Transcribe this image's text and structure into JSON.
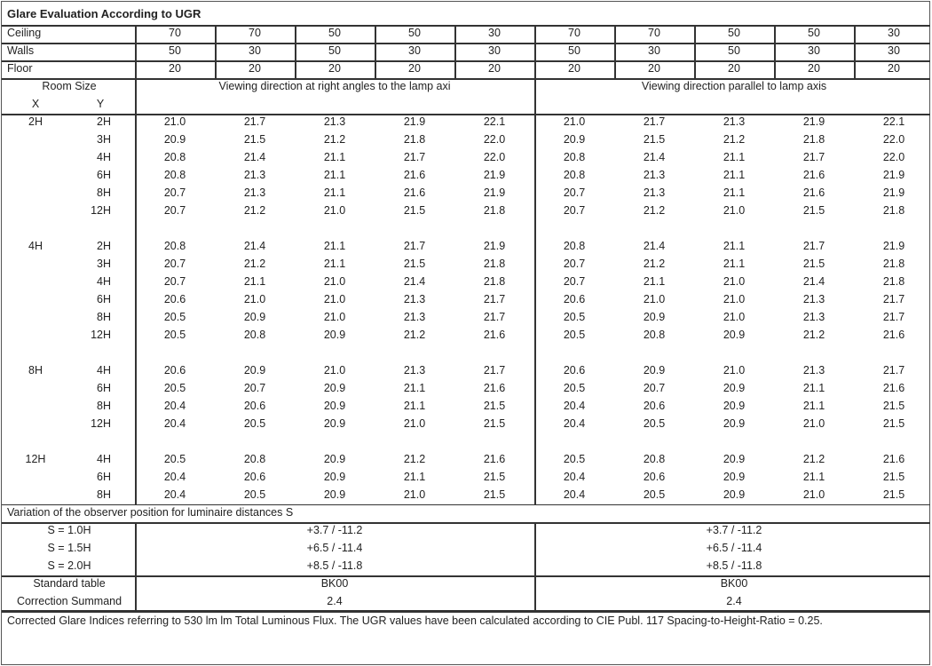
{
  "title": "Glare Evaluation According to UGR",
  "reflectances": [
    {
      "label": "Ceiling",
      "values": [
        "70",
        "70",
        "50",
        "50",
        "30",
        "70",
        "70",
        "50",
        "50",
        "30"
      ]
    },
    {
      "label": "Walls",
      "values": [
        "50",
        "30",
        "50",
        "30",
        "30",
        "50",
        "30",
        "50",
        "30",
        "30"
      ]
    },
    {
      "label": "Floor",
      "values": [
        "20",
        "20",
        "20",
        "20",
        "20",
        "20",
        "20",
        "20",
        "20",
        "20"
      ]
    }
  ],
  "header": {
    "room_size": "Room Size",
    "x": "X",
    "y": "Y",
    "right_angles": "Viewing direction at right angles to the lamp axi",
    "parallel": "Viewing direction parallel to lamp axis"
  },
  "groups": [
    {
      "x": "2H",
      "rows": [
        {
          "y": "2H",
          "right": [
            "21.0",
            "21.7",
            "21.3",
            "21.9",
            "22.1"
          ],
          "parallel": [
            "21.0",
            "21.7",
            "21.3",
            "21.9",
            "22.1"
          ]
        },
        {
          "y": "3H",
          "right": [
            "20.9",
            "21.5",
            "21.2",
            "21.8",
            "22.0"
          ],
          "parallel": [
            "20.9",
            "21.5",
            "21.2",
            "21.8",
            "22.0"
          ]
        },
        {
          "y": "4H",
          "right": [
            "20.8",
            "21.4",
            "21.1",
            "21.7",
            "22.0"
          ],
          "parallel": [
            "20.8",
            "21.4",
            "21.1",
            "21.7",
            "22.0"
          ]
        },
        {
          "y": "6H",
          "right": [
            "20.8",
            "21.3",
            "21.1",
            "21.6",
            "21.9"
          ],
          "parallel": [
            "20.8",
            "21.3",
            "21.1",
            "21.6",
            "21.9"
          ]
        },
        {
          "y": "8H",
          "right": [
            "20.7",
            "21.3",
            "21.1",
            "21.6",
            "21.9"
          ],
          "parallel": [
            "20.7",
            "21.3",
            "21.1",
            "21.6",
            "21.9"
          ]
        },
        {
          "y": "12H",
          "right": [
            "20.7",
            "21.2",
            "21.0",
            "21.5",
            "21.8"
          ],
          "parallel": [
            "20.7",
            "21.2",
            "21.0",
            "21.5",
            "21.8"
          ]
        }
      ]
    },
    {
      "x": "4H",
      "rows": [
        {
          "y": "2H",
          "right": [
            "20.8",
            "21.4",
            "21.1",
            "21.7",
            "21.9"
          ],
          "parallel": [
            "20.8",
            "21.4",
            "21.1",
            "21.7",
            "21.9"
          ]
        },
        {
          "y": "3H",
          "right": [
            "20.7",
            "21.2",
            "21.1",
            "21.5",
            "21.8"
          ],
          "parallel": [
            "20.7",
            "21.2",
            "21.1",
            "21.5",
            "21.8"
          ]
        },
        {
          "y": "4H",
          "right": [
            "20.7",
            "21.1",
            "21.0",
            "21.4",
            "21.8"
          ],
          "parallel": [
            "20.7",
            "21.1",
            "21.0",
            "21.4",
            "21.8"
          ]
        },
        {
          "y": "6H",
          "right": [
            "20.6",
            "21.0",
            "21.0",
            "21.3",
            "21.7"
          ],
          "parallel": [
            "20.6",
            "21.0",
            "21.0",
            "21.3",
            "21.7"
          ]
        },
        {
          "y": "8H",
          "right": [
            "20.5",
            "20.9",
            "21.0",
            "21.3",
            "21.7"
          ],
          "parallel": [
            "20.5",
            "20.9",
            "21.0",
            "21.3",
            "21.7"
          ]
        },
        {
          "y": "12H",
          "right": [
            "20.5",
            "20.8",
            "20.9",
            "21.2",
            "21.6"
          ],
          "parallel": [
            "20.5",
            "20.8",
            "20.9",
            "21.2",
            "21.6"
          ]
        }
      ]
    },
    {
      "x": "8H",
      "rows": [
        {
          "y": "4H",
          "right": [
            "20.6",
            "20.9",
            "21.0",
            "21.3",
            "21.7"
          ],
          "parallel": [
            "20.6",
            "20.9",
            "21.0",
            "21.3",
            "21.7"
          ]
        },
        {
          "y": "6H",
          "right": [
            "20.5",
            "20.7",
            "20.9",
            "21.1",
            "21.6"
          ],
          "parallel": [
            "20.5",
            "20.7",
            "20.9",
            "21.1",
            "21.6"
          ]
        },
        {
          "y": "8H",
          "right": [
            "20.4",
            "20.6",
            "20.9",
            "21.1",
            "21.5"
          ],
          "parallel": [
            "20.4",
            "20.6",
            "20.9",
            "21.1",
            "21.5"
          ]
        },
        {
          "y": "12H",
          "right": [
            "20.4",
            "20.5",
            "20.9",
            "21.0",
            "21.5"
          ],
          "parallel": [
            "20.4",
            "20.5",
            "20.9",
            "21.0",
            "21.5"
          ]
        }
      ]
    },
    {
      "x": "12H",
      "rows": [
        {
          "y": "4H",
          "right": [
            "20.5",
            "20.8",
            "20.9",
            "21.2",
            "21.6"
          ],
          "parallel": [
            "20.5",
            "20.8",
            "20.9",
            "21.2",
            "21.6"
          ]
        },
        {
          "y": "6H",
          "right": [
            "20.4",
            "20.6",
            "20.9",
            "21.1",
            "21.5"
          ],
          "parallel": [
            "20.4",
            "20.6",
            "20.9",
            "21.1",
            "21.5"
          ]
        },
        {
          "y": "8H",
          "right": [
            "20.4",
            "20.5",
            "20.9",
            "21.0",
            "21.5"
          ],
          "parallel": [
            "20.4",
            "20.5",
            "20.9",
            "21.0",
            "21.5"
          ]
        }
      ]
    }
  ],
  "variation": {
    "title": "Variation of the observer position for luminaire distances S",
    "rows": [
      {
        "label": "S = 1.0H",
        "right": "+3.7 / -11.2",
        "parallel": "+3.7 / -11.2"
      },
      {
        "label": "S = 1.5H",
        "right": "+6.5 / -11.4",
        "parallel": "+6.5 / -11.4"
      },
      {
        "label": "S = 2.0H",
        "right": "+8.5 / -11.8",
        "parallel": "+8.5 / -11.8"
      }
    ]
  },
  "standard": {
    "rows": [
      {
        "label": "Standard table",
        "right": "BK00",
        "parallel": "BK00"
      },
      {
        "label": "Correction Summand",
        "right": "2.4",
        "parallel": "2.4"
      }
    ]
  },
  "footer": "Corrected Glare Indices referring to 530 lm lm Total Luminous Flux. The UGR values have been calculated according to CIE Publ. 117    Spacing-to-Height-Ratio = 0.25."
}
